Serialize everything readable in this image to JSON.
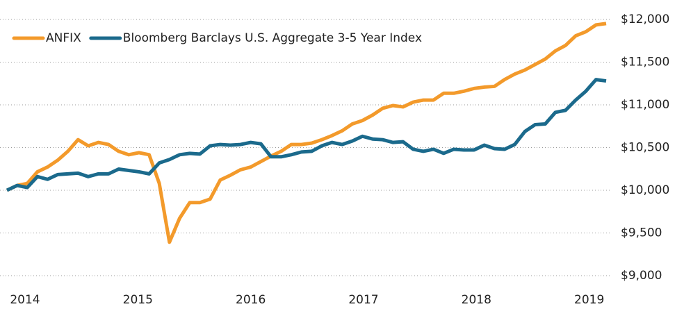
{
  "chart_data": {
    "type": "line",
    "x": [
      2013.84,
      2013.93,
      2014.02,
      2014.11,
      2014.2,
      2014.29,
      2014.38,
      2014.47,
      2014.56,
      2014.65,
      2014.74,
      2014.83,
      2014.92,
      2015.01,
      2015.1,
      2015.19,
      2015.28,
      2015.37,
      2015.46,
      2015.55,
      2015.64,
      2015.73,
      2015.82,
      2015.91,
      2016.0,
      2016.09,
      2016.18,
      2016.27,
      2016.36,
      2016.45,
      2016.54,
      2016.63,
      2016.72,
      2016.81,
      2016.9,
      2016.99,
      2017.08,
      2017.17,
      2017.26,
      2017.35,
      2017.44,
      2017.53,
      2017.62,
      2017.71,
      2017.8,
      2017.89,
      2017.98,
      2018.07,
      2018.16,
      2018.25,
      2018.34,
      2018.43,
      2018.52,
      2018.61,
      2018.7,
      2018.79,
      2018.88,
      2018.97,
      2019.06,
      2019.15
    ],
    "series": [
      {
        "name": "ANFIX",
        "color": "#f39a2b",
        "values": [
          10000,
          10056,
          10080,
          10216,
          10272,
          10352,
          10456,
          10592,
          10520,
          10560,
          10536,
          10456,
          10416,
          10440,
          10416,
          10080,
          9392,
          9672,
          9856,
          9856,
          9896,
          10120,
          10176,
          10240,
          10272,
          10336,
          10400,
          10456,
          10536,
          10536,
          10552,
          10592,
          10640,
          10696,
          10776,
          10816,
          10880,
          10960,
          10992,
          10976,
          11032,
          11056,
          11056,
          11136,
          11136,
          11160,
          11192,
          11208,
          11216,
          11296,
          11360,
          11408,
          11472,
          11536,
          11632,
          11696,
          11808,
          11856,
          11936,
          11952
        ]
      },
      {
        "name": "Bloomberg Barclays U.S. Aggregate 3-5 Year Index",
        "color": "#1b6a8c",
        "values": [
          10000,
          10056,
          10032,
          10160,
          10128,
          10184,
          10192,
          10200,
          10160,
          10192,
          10192,
          10248,
          10232,
          10216,
          10192,
          10320,
          10360,
          10416,
          10432,
          10424,
          10520,
          10536,
          10528,
          10536,
          10560,
          10544,
          10392,
          10392,
          10416,
          10448,
          10456,
          10520,
          10560,
          10536,
          10576,
          10632,
          10600,
          10592,
          10560,
          10568,
          10480,
          10456,
          10480,
          10432,
          10480,
          10472,
          10472,
          10528,
          10488,
          10480,
          10536,
          10688,
          10768,
          10776,
          10912,
          10936,
          11056,
          11160,
          11296,
          11280
        ]
      }
    ],
    "xlim": [
      2013.84,
      2019.15
    ],
    "xticks": [
      2014,
      2015,
      2016,
      2017,
      2018,
      2019
    ],
    "ylim": [
      9000,
      12000
    ],
    "yticks": [
      {
        "value": 9000,
        "label": "$9,000"
      },
      {
        "value": 9500,
        "label": "$9,500"
      },
      {
        "value": 10000,
        "label": "$10,000"
      },
      {
        "value": 10500,
        "label": "$10,500"
      },
      {
        "value": 11000,
        "label": "$11,000"
      },
      {
        "value": 11500,
        "label": "$11,500"
      },
      {
        "value": 12000,
        "label": "$12,000"
      }
    ],
    "grid": true,
    "legend": "top-left"
  }
}
